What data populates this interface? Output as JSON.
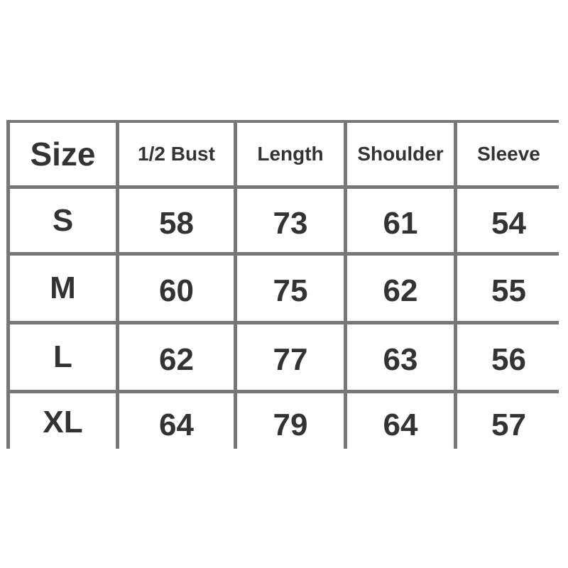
{
  "table": {
    "headers": [
      "Size",
      "1/2 Bust",
      "Length",
      "Shoulder",
      "Sleeve"
    ],
    "rows": [
      [
        "S",
        "58",
        "73",
        "61",
        "54"
      ],
      [
        "M",
        "60",
        "75",
        "62",
        "55"
      ],
      [
        "L",
        "62",
        "77",
        "63",
        "56"
      ],
      [
        "XL",
        "64",
        "79",
        "64",
        "57"
      ]
    ]
  },
  "colors": {
    "border": "#777777",
    "text": "#333333",
    "background": "#ffffff"
  }
}
